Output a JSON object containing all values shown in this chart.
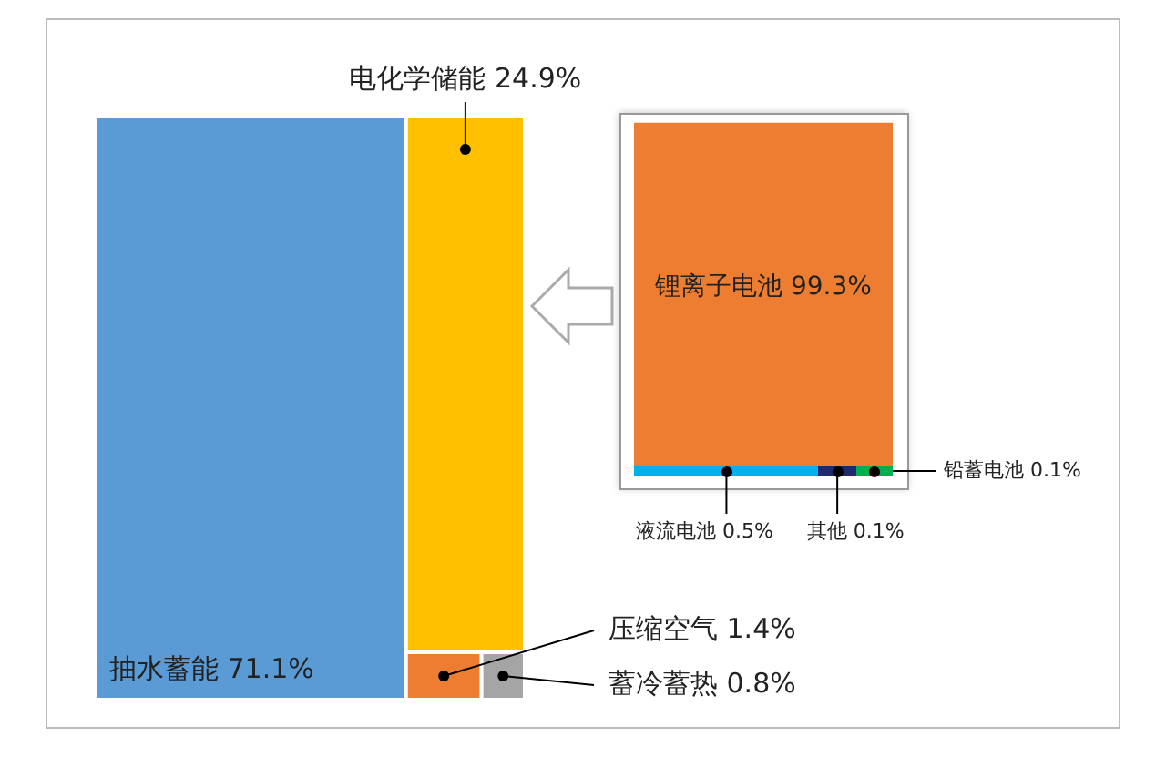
{
  "chart_data": [
    {
      "type": "other",
      "categories": [
        "抽水蓄能",
        "电化学储能",
        "压缩空气",
        "蓄冷蓄热"
      ],
      "values": [
        71.1,
        24.9,
        1.4,
        0.8
      ],
      "value_labels": [
        "71.1%",
        "24.9%",
        "1.4%",
        "0.8%"
      ],
      "colors": [
        "#5b9bd5",
        "#ffc000",
        "#ed7d31",
        "#a5a5a5"
      ]
    },
    {
      "type": "other",
      "categories": [
        "锂离子电池",
        "液流电池",
        "其他",
        "铅蓄电池"
      ],
      "values": [
        99.3,
        0.5,
        0.1,
        0.1
      ],
      "value_labels": [
        "99.3%",
        "0.5%",
        "0.1%",
        "0.1%"
      ],
      "colors": [
        "#ed7d31",
        "#00b0f0",
        "#1f2a6b",
        "#00b050"
      ]
    }
  ]
}
